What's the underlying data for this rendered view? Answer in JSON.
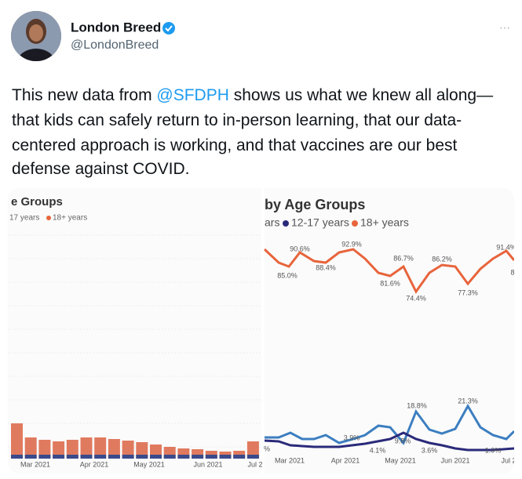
{
  "author": {
    "name": "London Breed",
    "handle": "@LondonBreed",
    "more": "···"
  },
  "tweet": {
    "lines": [
      [
        "This new data from ",
        "@SFDPH",
        " shows us what we knew all along—"
      ],
      [
        "that kids can safely return to in-person learning, that our data-"
      ],
      [
        "centered approach is working, and that vaccines are our best"
      ],
      [
        "defense against COVID."
      ]
    ]
  },
  "images": [
    {
      "title": "e Groups",
      "legend": [
        "17 years",
        "18+ years"
      ],
      "x_labels": [
        "Mar 2021",
        "Apr 2021",
        "May 2021",
        "Jun 2021",
        "Jul 2"
      ]
    },
    {
      "title": "by Age Groups",
      "legend": [
        "ars",
        "12-17 years",
        "18+ years"
      ],
      "x_labels": [
        "Mar 2021",
        "Apr 2021",
        "May 2021",
        "Jun 2021",
        "Jul 2"
      ],
      "labels": [
        "90.6%",
        "85.0%",
        "88.4%",
        "92.9%",
        "86.7%",
        "81.6%",
        "74.4%",
        "86.2%",
        "77.3%",
        "91.4%",
        "8",
        "18.8%",
        "21.3%",
        "3.9%",
        "4.1%",
        "9.8%",
        "3.6%",
        "1.0%",
        "%"
      ]
    }
  ]
}
